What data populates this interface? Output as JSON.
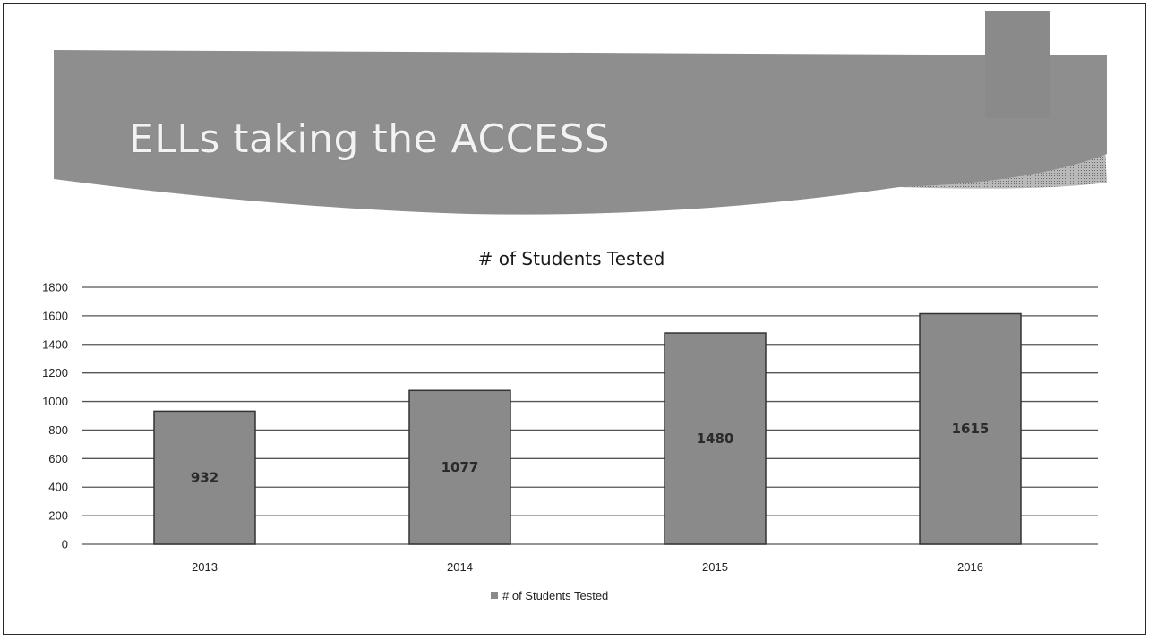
{
  "slide": {
    "title": "ELLs taking the ACCESS"
  },
  "colors": {
    "banner": "#8e8e8e",
    "banner_dark": "#7a7a7a",
    "bar": "#8a8a8a",
    "bar_border": "#333333",
    "grid": "#555555"
  },
  "chart_data": {
    "type": "bar",
    "title": "# of Students Tested",
    "categories": [
      "2013",
      "2014",
      "2015",
      "2016"
    ],
    "series": [
      {
        "name": "# of Students Tested",
        "values": [
          932,
          1077,
          1480,
          1615
        ]
      }
    ],
    "data_labels": [
      "932",
      "1077",
      "1480",
      "1615"
    ],
    "y_ticks": [
      0,
      200,
      400,
      600,
      800,
      1000,
      1200,
      1400,
      1600,
      1800
    ],
    "ylim": [
      0,
      1800
    ],
    "grid": true,
    "legend": "bottom",
    "legend_label": "# of Students Tested"
  }
}
